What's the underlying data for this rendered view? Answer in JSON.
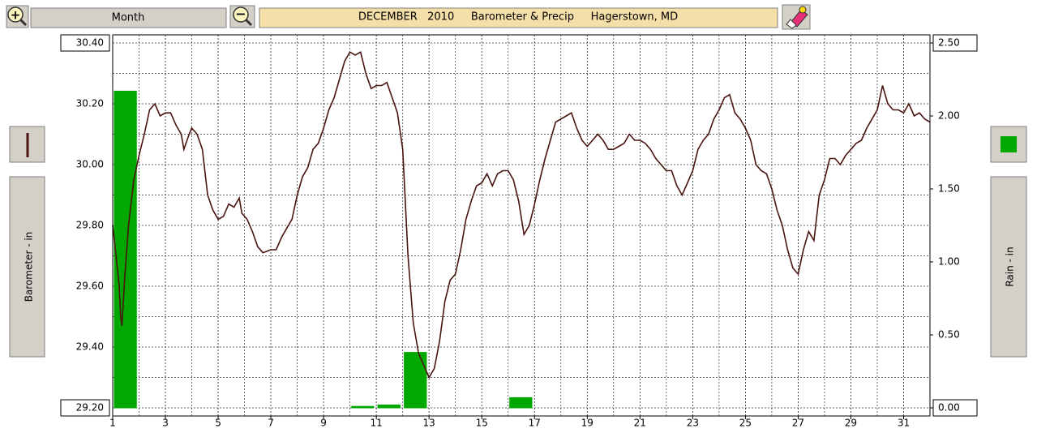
{
  "toolbar": {
    "button": "Month"
  },
  "chart_data": {
    "type": "line",
    "title": "DECEMBER   2010     Barometer & Precip     Hagerstown, MD",
    "ylabel": "Barometer - in",
    "y2label": "Rain - in",
    "xlim": [
      1,
      32
    ],
    "xticks": [
      1,
      3,
      5,
      7,
      9,
      11,
      13,
      15,
      17,
      19,
      21,
      23,
      25,
      27,
      29,
      31
    ],
    "ylim": [
      29.2,
      30.4
    ],
    "yticks": [
      {
        "value": 29.2,
        "label": "29.20"
      },
      {
        "value": 29.4,
        "label": "29.40"
      },
      {
        "value": 29.6,
        "label": "29.60"
      },
      {
        "value": 29.8,
        "label": "29.80"
      },
      {
        "value": 30.0,
        "label": "30.00"
      },
      {
        "value": 30.2,
        "label": "30.20"
      },
      {
        "value": 30.4,
        "label": "30.40"
      }
    ],
    "y2lim": [
      0,
      2.5
    ],
    "y2ticks": [
      {
        "value": 0,
        "label": "0.00"
      },
      {
        "value": 0.5,
        "label": "0.50"
      },
      {
        "value": 1.0,
        "label": "1.00"
      },
      {
        "value": 1.5,
        "label": "1.50"
      },
      {
        "value": 2.0,
        "label": "2.00"
      },
      {
        "value": 2.5,
        "label": "2.50"
      }
    ],
    "grid": true,
    "series": [
      {
        "name": "Barometer",
        "type": "line",
        "color": "#4a1410",
        "x": [
          1,
          1.1,
          1.25,
          1.3,
          1.35,
          1.45,
          1.6,
          1.8,
          2,
          2.2,
          2.4,
          2.6,
          2.8,
          3,
          3.2,
          3.4,
          3.6,
          3.7,
          3.9,
          4,
          4.2,
          4.4,
          4.6,
          4.8,
          5,
          5.2,
          5.4,
          5.6,
          5.8,
          5.9,
          6.1,
          6.3,
          6.5,
          6.7,
          7,
          7.2,
          7.4,
          7.6,
          7.8,
          8,
          8.2,
          8.4,
          8.6,
          8.8,
          9,
          9.2,
          9.4,
          9.6,
          9.8,
          10,
          10.2,
          10.4,
          10.6,
          10.8,
          11,
          11.2,
          11.4,
          11.6,
          11.8,
          12,
          12.2,
          12.4,
          12.6,
          12.8,
          13,
          13.2,
          13.4,
          13.6,
          13.8,
          14,
          14.2,
          14.4,
          14.6,
          14.8,
          15,
          15.2,
          15.4,
          15.6,
          15.8,
          16,
          16.2,
          16.4,
          16.6,
          16.8,
          17,
          17.2,
          17.4,
          17.6,
          17.8,
          18,
          18.2,
          18.4,
          18.6,
          18.8,
          19,
          19.2,
          19.4,
          19.6,
          19.8,
          20,
          20.2,
          20.4,
          20.6,
          20.8,
          21,
          21.2,
          21.4,
          21.6,
          21.8,
          22,
          22.2,
          22.4,
          22.6,
          22.8,
          23,
          23.2,
          23.4,
          23.6,
          23.8,
          24,
          24.2,
          24.4,
          24.6,
          24.8,
          25,
          25.2,
          25.4,
          25.6,
          25.8,
          26,
          26.2,
          26.4,
          26.6,
          26.8,
          27,
          27.2,
          27.4,
          27.6,
          27.8,
          28,
          28.2,
          28.4,
          28.6,
          28.8,
          29,
          29.2,
          29.4,
          29.6,
          29.8,
          30,
          30.2,
          30.4,
          30.6,
          30.8,
          31,
          31.2,
          31.4,
          31.6,
          31.8,
          32
        ],
        "values": [
          29.8,
          29.72,
          29.6,
          29.5,
          29.47,
          29.62,
          29.8,
          29.95,
          30.03,
          30.1,
          30.18,
          30.2,
          30.16,
          30.17,
          30.17,
          30.13,
          30.1,
          30.05,
          30.1,
          30.12,
          30.1,
          30.05,
          29.9,
          29.85,
          29.82,
          29.83,
          29.87,
          29.86,
          29.89,
          29.84,
          29.82,
          29.78,
          29.73,
          29.71,
          29.72,
          29.72,
          29.76,
          29.79,
          29.82,
          29.9,
          29.96,
          29.99,
          30.05,
          30.07,
          30.12,
          30.18,
          30.22,
          30.28,
          30.34,
          30.37,
          30.36,
          30.37,
          30.3,
          30.25,
          30.26,
          30.26,
          30.27,
          30.22,
          30.17,
          30.05,
          29.7,
          29.48,
          29.38,
          29.34,
          29.3,
          29.33,
          29.42,
          29.55,
          29.62,
          29.64,
          29.72,
          29.82,
          29.88,
          29.93,
          29.94,
          29.97,
          29.93,
          29.97,
          29.98,
          29.98,
          29.95,
          29.88,
          29.77,
          29.8,
          29.87,
          29.95,
          30.02,
          30.08,
          30.14,
          30.15,
          30.16,
          30.17,
          30.12,
          30.08,
          30.06,
          30.08,
          30.1,
          30.08,
          30.05,
          30.05,
          30.06,
          30.07,
          30.1,
          30.08,
          30.08,
          30.07,
          30.05,
          30.02,
          30.0,
          29.98,
          29.98,
          29.93,
          29.9,
          29.94,
          29.98,
          30.05,
          30.08,
          30.1,
          30.15,
          30.18,
          30.22,
          30.23,
          30.17,
          30.15,
          30.12,
          30.08,
          30.0,
          29.98,
          29.97,
          29.92,
          29.85,
          29.8,
          29.72,
          29.66,
          29.64,
          29.72,
          29.78,
          29.75,
          29.9,
          29.95,
          30.02,
          30.02,
          30.0,
          30.03,
          30.05,
          30.07,
          30.08,
          30.12,
          30.15,
          30.18,
          30.26,
          30.2,
          30.18,
          30.18,
          30.17,
          30.2,
          30.16,
          30.17,
          30.15,
          30.14
        ]
      },
      {
        "name": "Rain",
        "type": "bar",
        "axis": "y2",
        "color": "#00a800",
        "x": [
          1,
          2,
          3,
          4,
          5,
          6,
          7,
          8,
          9,
          10,
          11,
          12,
          13,
          14,
          15,
          16,
          17,
          18,
          19,
          20,
          21,
          22,
          23,
          24,
          25,
          26,
          27,
          28,
          29,
          30,
          31
        ],
        "values": [
          2.17,
          0,
          0,
          0,
          0,
          0,
          0,
          0,
          0,
          0.01,
          0.02,
          0.38,
          0,
          0,
          0,
          0.07,
          0,
          0,
          0,
          0,
          0,
          0,
          0,
          0,
          0,
          0,
          0,
          0,
          0,
          0,
          0
        ]
      }
    ]
  }
}
